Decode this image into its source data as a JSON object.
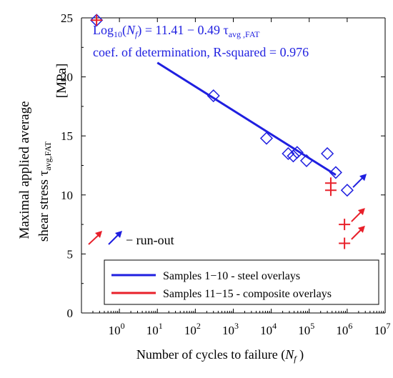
{
  "chart_data": {
    "type": "scatter",
    "x_scale": "log",
    "xlim": [
      0.1,
      10000000
    ],
    "ylim": [
      0,
      25
    ],
    "y_ticks": [
      0,
      5,
      10,
      15,
      20,
      25
    ],
    "x_tick_labels": [
      {
        "x": 1,
        "base": "10",
        "exp": "0"
      },
      {
        "x": 10,
        "base": "10",
        "exp": "1"
      },
      {
        "x": 100,
        "base": "10",
        "exp": "2"
      },
      {
        "x": 1000,
        "base": "10",
        "exp": "3"
      },
      {
        "x": 10000,
        "base": "10",
        "exp": "4"
      },
      {
        "x": 100000,
        "base": "10",
        "exp": "5"
      },
      {
        "x": 1000000,
        "base": "10",
        "exp": "6"
      },
      {
        "x": 10000000,
        "base": "10",
        "exp": "7"
      }
    ],
    "xlabel": {
      "main": "Number of cycles to failure (",
      "var": "N",
      "sub": "f",
      "tail": " )"
    },
    "ylabel": {
      "line1": "Maximal applied average",
      "line2_main": "shear stress τ",
      "line2_sub": "avg,FAT",
      "unit": "[MPa]"
    },
    "colors": {
      "steel": "#1f1fe0",
      "composite": "#e8202a",
      "axis": "#000000"
    },
    "series": [
      {
        "name": "Samples 1−10 - steel overlays",
        "marker": "diamond",
        "color": "#1f1fe0",
        "x": [
          300,
          7500,
          28000,
          38000,
          48000,
          85000,
          300000,
          500000,
          1000000
        ],
        "y": [
          18.4,
          14.8,
          13.5,
          13.3,
          13.6,
          12.9,
          13.5,
          11.9,
          10.4
        ]
      },
      {
        "name": "Samples 11−15 - composite overlays",
        "marker": "plus",
        "color": "#e8202a",
        "x": [
          370000,
          370000,
          850000,
          850000
        ],
        "y": [
          11.0,
          10.4,
          7.5,
          5.9
        ]
      }
    ],
    "run_out_arrows": [
      {
        "x": 1100000,
        "y": 10.4,
        "color": "#1f1fe0"
      },
      {
        "x": 1000000,
        "y": 7.5,
        "color": "#e8202a"
      },
      {
        "x": 1000000,
        "y": 6.0,
        "color": "#e8202a"
      }
    ],
    "special_point": {
      "x": 0.25,
      "y": 24.8
    },
    "fit_line": {
      "x": [
        10,
        500000
      ],
      "y": [
        21.2,
        11.7
      ],
      "color": "#1f1fe0"
    },
    "annotations": {
      "equation": {
        "pre": "Log",
        "sub10": "10",
        "paren_open": "(",
        "var": "N",
        "var_sub": "f",
        "rest": ") = 11.41 − 0.49 τ",
        "tau_sub": "avg ,FAT"
      },
      "r_squared": "coef. of determination, R-squared  = 0.976",
      "run_out": "− run-out"
    },
    "legend": {
      "placement": "bottom-right",
      "entries": [
        {
          "label": "Samples 1−10 - steel overlays",
          "color": "#1f1fe0"
        },
        {
          "label": "Samples  11−15 - composite overlays",
          "color": "#e8202a"
        }
      ]
    },
    "grid": false
  }
}
